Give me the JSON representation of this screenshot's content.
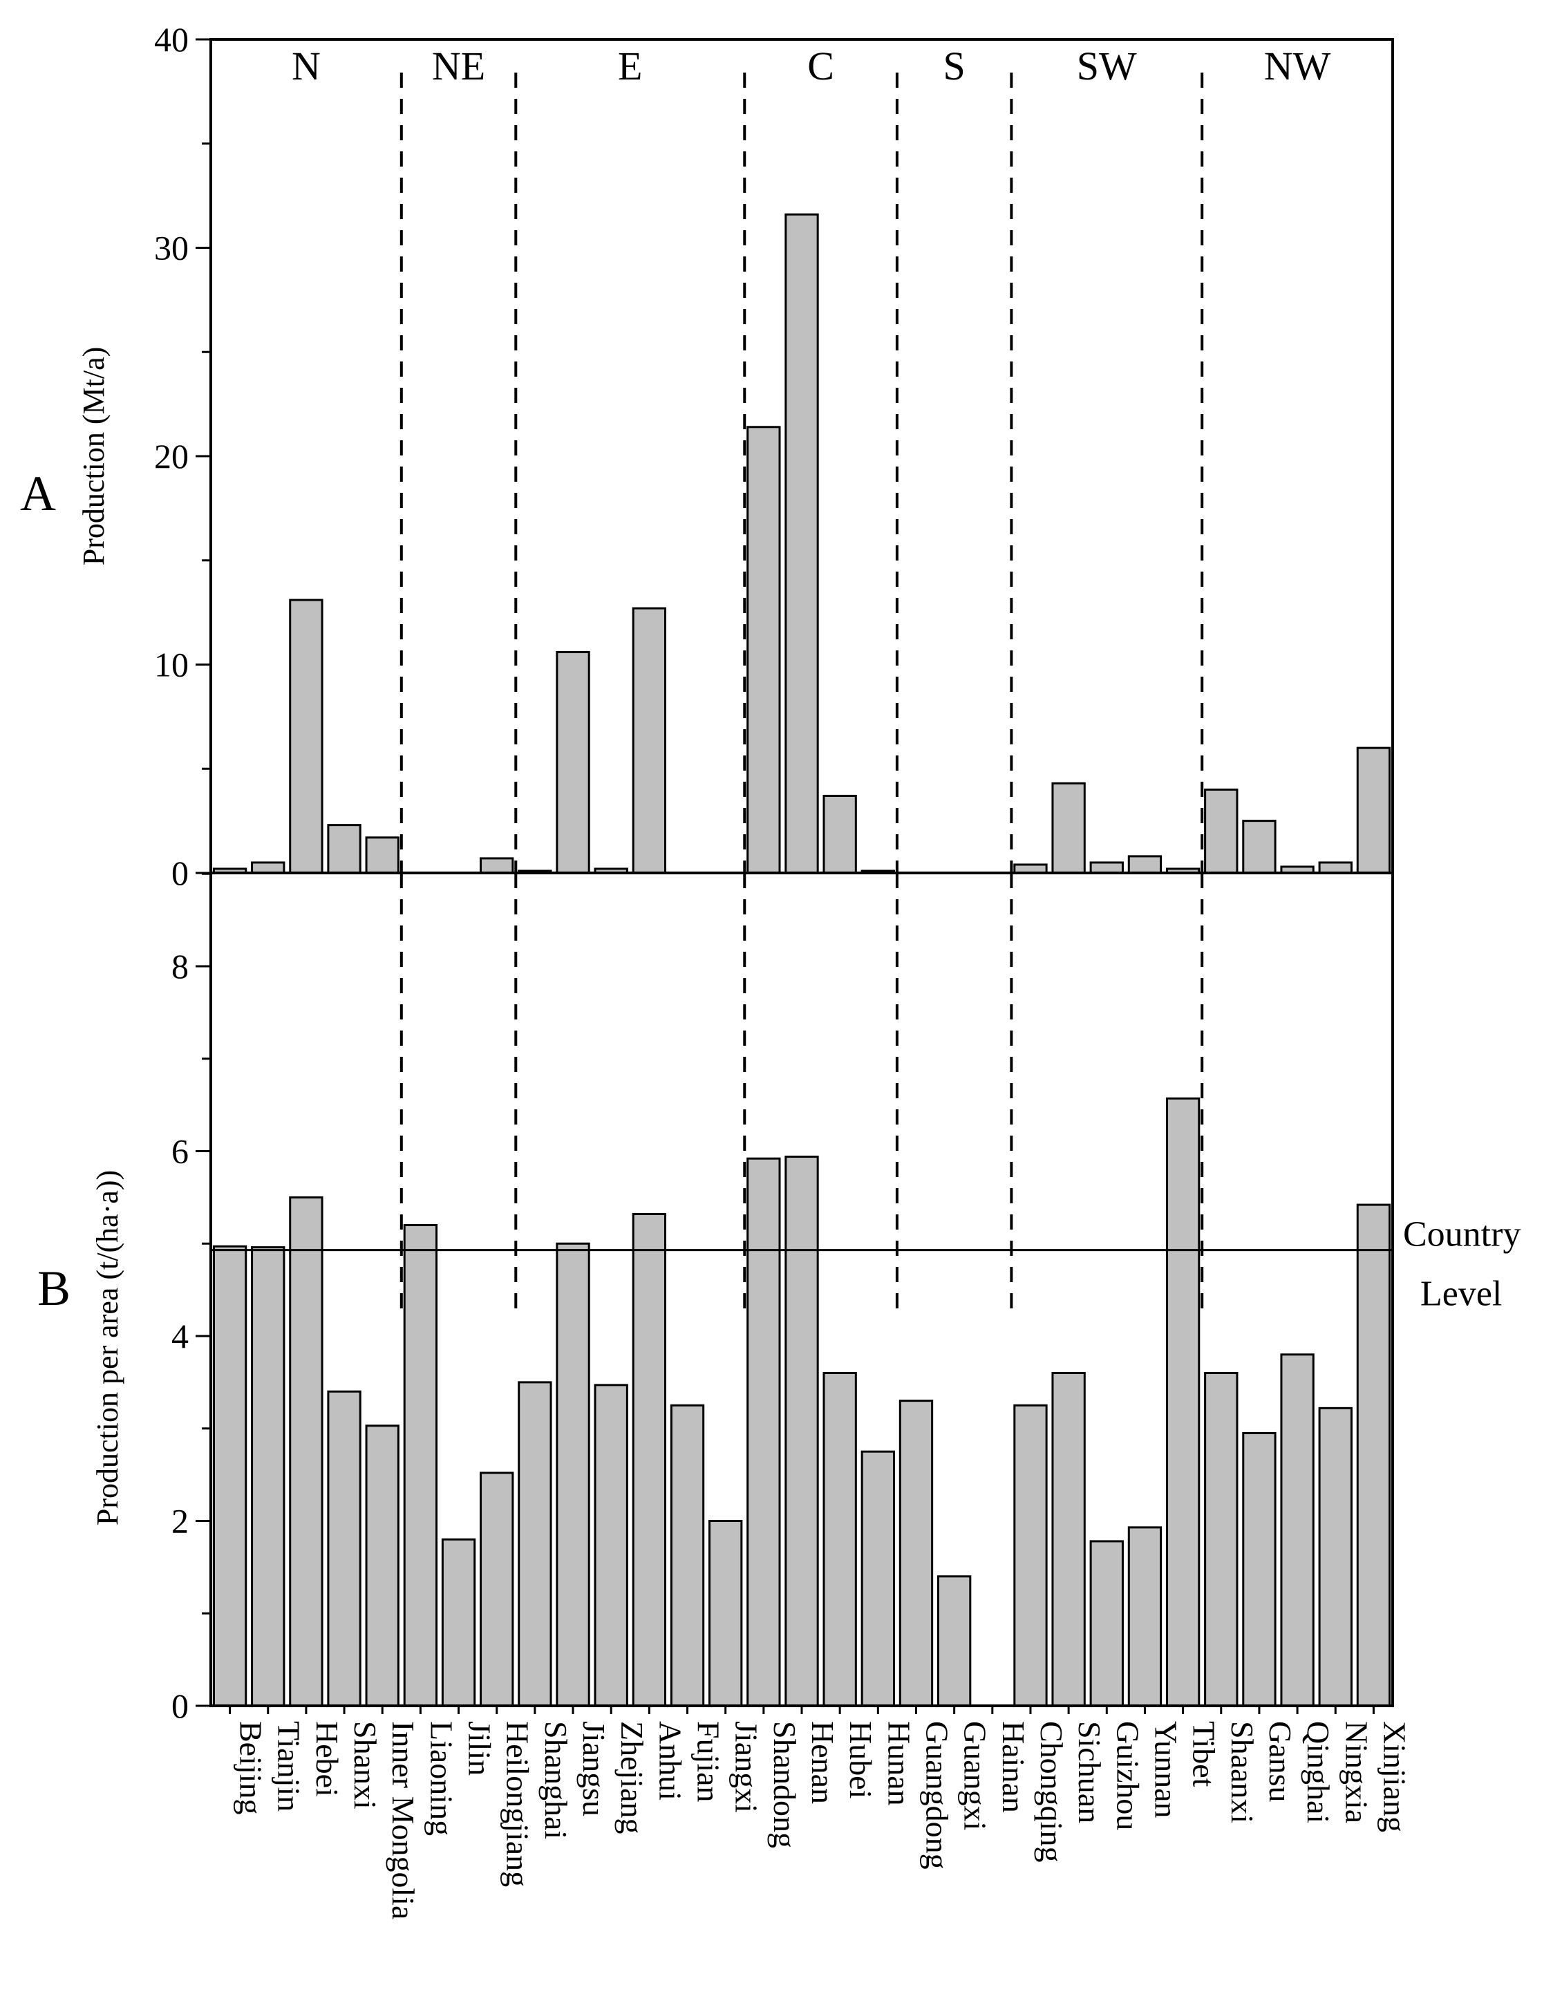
{
  "chart_data": [
    {
      "panel": "A",
      "type": "bar",
      "ylabel": "Production (Mt/a)",
      "ylim": [
        0,
        40
      ],
      "yticks": [
        "0",
        "10",
        "20",
        "30",
        "40"
      ],
      "regions": [
        "N",
        "NE",
        "E",
        "C",
        "S",
        "SW",
        "NW"
      ],
      "categories": [
        "Beijing",
        "Tianjin",
        "Hebei",
        "Shanxi",
        "Inner Mongolia",
        "Liaoning",
        "Jilin",
        "Heilongjiang",
        "Shanghai",
        "Jiangsu",
        "Zhejiang",
        "Anhui",
        "Fujian",
        "Jiangxi",
        "Shandong",
        "Henan",
        "Hubei",
        "Hunan",
        "Guangdong",
        "Guangxi",
        "Hainan",
        "Chongqing",
        "Sichuan",
        "Guizhou",
        "Yunnan",
        "Tibet",
        "Shaanxi",
        "Gansu",
        "Qinghai",
        "Ningxia",
        "Xinjiang"
      ],
      "values": [
        0.2,
        0.5,
        13.1,
        2.3,
        1.7,
        0,
        0,
        0.7,
        0.1,
        10.6,
        0.2,
        12.7,
        0,
        0,
        21.4,
        31.6,
        3.7,
        0.1,
        0,
        0,
        0,
        0.4,
        4.3,
        0.5,
        0.8,
        0.2,
        4.0,
        2.5,
        0.3,
        0.5,
        6.0
      ]
    },
    {
      "panel": "B",
      "type": "bar",
      "ylabel": "Production per area (t/(ha·a))",
      "ylim": [
        0,
        9
      ],
      "yticks": [
        "0",
        "2",
        "4",
        "6",
        "8"
      ],
      "categories": [
        "Beijing",
        "Tianjin",
        "Hebei",
        "Shanxi",
        "Inner Mongolia",
        "Liaoning",
        "Jilin",
        "Heilongjiang",
        "Shanghai",
        "Jiangsu",
        "Zhejiang",
        "Anhui",
        "Fujian",
        "Jiangxi",
        "Shandong",
        "Henan",
        "Hubei",
        "Hunan",
        "Guangdong",
        "Guangxi",
        "Hainan",
        "Chongqing",
        "Sichuan",
        "Guizhou",
        "Yunnan",
        "Tibet",
        "Shaanxi",
        "Gansu",
        "Qinghai",
        "Ningxia",
        "Xinjiang"
      ],
      "values": [
        4.97,
        4.96,
        5.5,
        3.4,
        3.03,
        5.2,
        1.8,
        2.52,
        3.5,
        5.0,
        3.47,
        5.32,
        3.25,
        2.0,
        5.92,
        5.94,
        3.6,
        2.75,
        3.3,
        1.4,
        0,
        3.25,
        3.6,
        1.78,
        1.93,
        6.57,
        3.6,
        2.95,
        3.8,
        3.22,
        5.42
      ],
      "reference_line": {
        "value": 4.93,
        "label_line1": "Country",
        "label_line2": "Level"
      }
    }
  ]
}
